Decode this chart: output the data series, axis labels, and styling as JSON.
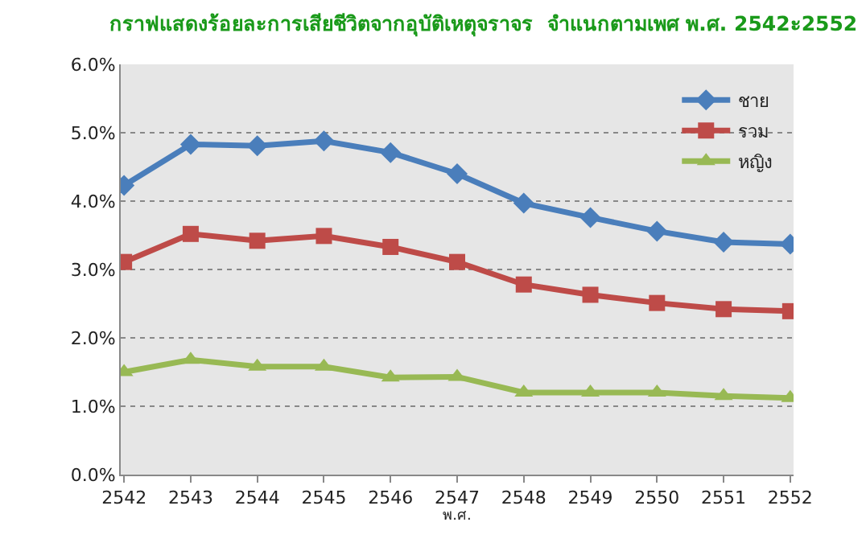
{
  "chart_data": {
    "type": "line",
    "title": "กราฟแสดงร้อยละการเสียชีวิตจากอุบัติเหตุจราจร  จำแนกตามเพศ พ.ศ. 2542ะ2552",
    "xlabel": "พ.ศ.",
    "categories": [
      "2542",
      "2543",
      "2544",
      "2545",
      "2546",
      "2547",
      "2548",
      "2549",
      "2550",
      "2551",
      "2552"
    ],
    "series": [
      {
        "name": "ชาย",
        "color": "#4a7ebb",
        "marker": "diamond",
        "values": [
          4.23,
          4.83,
          4.81,
          4.88,
          4.71,
          4.4,
          3.97,
          3.76,
          3.56,
          3.4,
          3.37
        ]
      },
      {
        "name": "รวม",
        "color": "#be4b48",
        "marker": "square",
        "values": [
          3.11,
          3.52,
          3.42,
          3.49,
          3.33,
          3.11,
          2.78,
          2.63,
          2.51,
          2.42,
          2.39
        ]
      },
      {
        "name": "หญิง",
        "color": "#98b954",
        "marker": "triangle",
        "values": [
          1.5,
          1.68,
          1.58,
          1.58,
          1.42,
          1.43,
          1.2,
          1.2,
          1.2,
          1.15,
          1.12
        ]
      }
    ],
    "ylim": [
      0,
      6
    ],
    "yticks": [
      {
        "value": 0,
        "label": "0.0%"
      },
      {
        "value": 1,
        "label": "1.0%"
      },
      {
        "value": 2,
        "label": "2.0%"
      },
      {
        "value": 3,
        "label": "3.0%"
      },
      {
        "value": 4,
        "label": "4.0%"
      },
      {
        "value": 5,
        "label": "5.0%"
      },
      {
        "value": 6,
        "label": "6.0%"
      }
    ],
    "grid": "y",
    "legend": "top right",
    "line_style": "solid"
  }
}
